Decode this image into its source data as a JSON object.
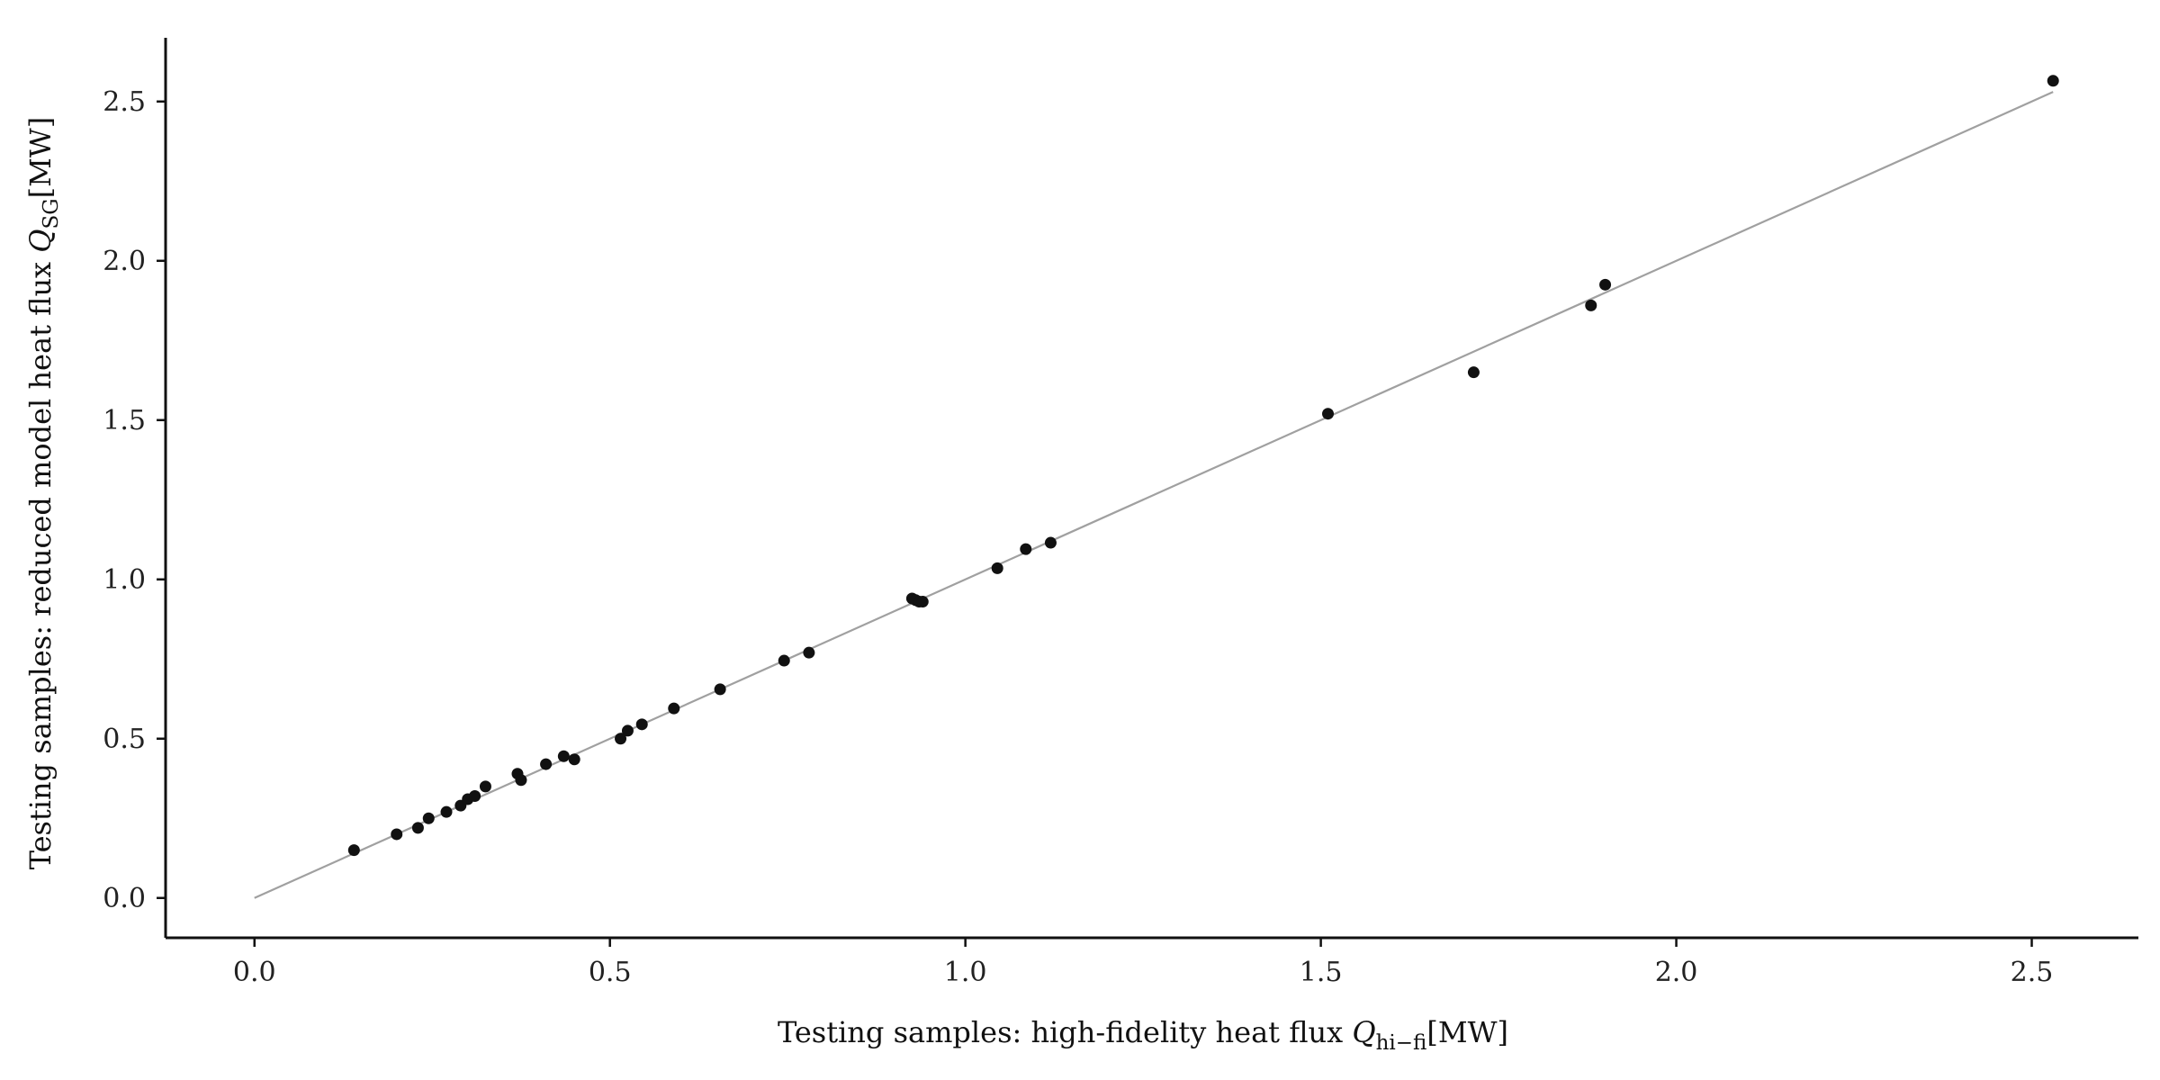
{
  "chart_data": {
    "type": "scatter",
    "title": "",
    "xlabel": "Testing samples: high-fidelity heat flux ",
    "xlabel_symbol": "Q",
    "xlabel_subscript": "hi−fi",
    "xlabel_unit": "[MW]",
    "ylabel": "Testing samples: reduced model heat flux ",
    "ylabel_symbol": "Q",
    "ylabel_subscript": "SG",
    "ylabel_unit": "[MW]",
    "xlim": [
      -0.125,
      2.65
    ],
    "ylim": [
      -0.125,
      2.7
    ],
    "xticks": [
      0.0,
      0.5,
      1.0,
      1.5,
      2.0,
      2.5
    ],
    "xtick_labels": [
      "0.0",
      "0.5",
      "1.0",
      "1.5",
      "2.0",
      "2.5"
    ],
    "yticks": [
      0.0,
      0.5,
      1.0,
      1.5,
      2.0,
      2.5
    ],
    "ytick_labels": [
      "0.0",
      "0.5",
      "1.0",
      "1.5",
      "2.0",
      "2.5"
    ],
    "grid": false,
    "reference_line": {
      "x": [
        0.0,
        2.53
      ],
      "y": [
        0.0,
        2.53
      ],
      "color": "#a0a0a0"
    },
    "series": [
      {
        "color": "#111111",
        "x": [
          0.14,
          0.2,
          0.23,
          0.245,
          0.27,
          0.29,
          0.3,
          0.31,
          0.325,
          0.37,
          0.375,
          0.41,
          0.435,
          0.45,
          0.515,
          0.525,
          0.545,
          0.59,
          0.655,
          0.745,
          0.78,
          0.925,
          0.93,
          0.935,
          0.94,
          1.045,
          1.085,
          1.12,
          1.51,
          1.715,
          1.88,
          1.9,
          2.53
        ],
        "y": [
          0.15,
          0.2,
          0.22,
          0.25,
          0.27,
          0.29,
          0.31,
          0.32,
          0.35,
          0.39,
          0.37,
          0.42,
          0.445,
          0.435,
          0.5,
          0.525,
          0.545,
          0.595,
          0.655,
          0.745,
          0.77,
          0.94,
          0.935,
          0.93,
          0.93,
          1.035,
          1.095,
          1.115,
          1.52,
          1.65,
          1.86,
          1.925,
          2.565
        ]
      }
    ]
  }
}
